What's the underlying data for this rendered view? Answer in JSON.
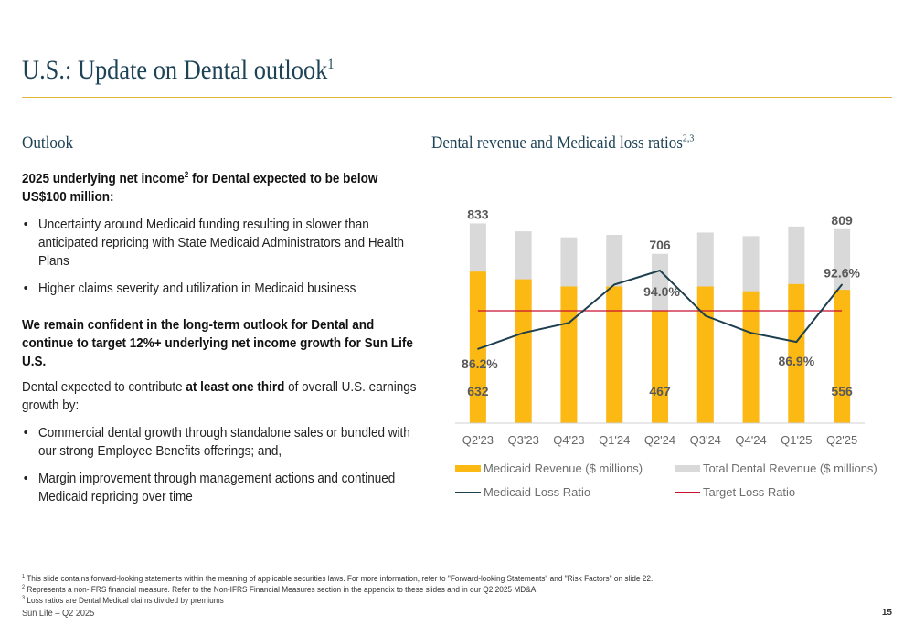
{
  "page": {
    "title": "U.S.: Update on Dental outlook",
    "title_sup": "1"
  },
  "outlook": {
    "heading": "Outlook",
    "headline_a": "2025 underlying net income",
    "headline_sup": "2",
    "headline_b": " for Dental expected to be below US$100 million:",
    "bullets1": [
      "Uncertainty around Medicaid funding resulting in slower than anticipated repricing with State Medicaid Administrators and Health Plans",
      "Higher claims severity and utilization in Medicaid business"
    ],
    "confident": "We remain confident in the long-term outlook for Dental and continue to target 12%+ underlying net income growth for Sun Life U.S.",
    "contrib_a": "Dental expected to contribute ",
    "contrib_bold": "at least one third",
    "contrib_b": " of overall U.S. earnings growth by:",
    "bullets2": [
      "Commercial dental growth through standalone sales or bundled with our strong Employee Benefits offerings; and,",
      "Margin improvement through management actions and continued Medicaid repricing over time"
    ]
  },
  "chart_heading": {
    "text": "Dental revenue and Medicaid loss ratios",
    "sup": "2,3"
  },
  "chart_data": {
    "type": "bar",
    "categories": [
      "Q2'23",
      "Q3'23",
      "Q4'23",
      "Q1'24",
      "Q2'24",
      "Q3'24",
      "Q4'24",
      "Q1'25",
      "Q2'25"
    ],
    "series": [
      {
        "name": "Medicaid Revenue ($ millions)",
        "type": "bar",
        "color": "#fdb913",
        "values": [
          632,
          600,
          570,
          570,
          467,
          570,
          550,
          580,
          556
        ]
      },
      {
        "name": "Total Dental Revenue ($ millions)",
        "type": "bar",
        "color": "#d9d9d9",
        "values": [
          833,
          800,
          775,
          785,
          706,
          795,
          780,
          820,
          809
        ]
      },
      {
        "name": "Medicaid Loss Ratio",
        "type": "line",
        "color": "#1e3f4e",
        "values": [
          86.2,
          87.8,
          88.8,
          92.6,
          94.0,
          89.5,
          87.8,
          86.9,
          92.6
        ]
      },
      {
        "name": "Target Loss Ratio",
        "type": "line",
        "color": "#c8102e",
        "values": [
          90.0,
          90.0,
          90.0,
          90.0,
          90.0,
          90.0,
          90.0,
          90.0,
          90.0
        ]
      }
    ],
    "data_labels": [
      {
        "category": "Q2'23",
        "series": "Total Dental Revenue ($ millions)",
        "text": "833"
      },
      {
        "category": "Q2'24",
        "series": "Total Dental Revenue ($ millions)",
        "text": "706"
      },
      {
        "category": "Q2'25",
        "series": "Total Dental Revenue ($ millions)",
        "text": "809"
      },
      {
        "category": "Q2'23",
        "series": "Medicaid Revenue ($ millions)",
        "text": "632"
      },
      {
        "category": "Q2'24",
        "series": "Medicaid Revenue ($ millions)",
        "text": "467"
      },
      {
        "category": "Q2'25",
        "series": "Medicaid Revenue ($ millions)",
        "text": "556"
      },
      {
        "category": "Q2'23",
        "series": "Medicaid Loss Ratio",
        "text": "86.2%"
      },
      {
        "category": "Q2'24",
        "series": "Medicaid Loss Ratio",
        "text": "94.0%"
      },
      {
        "category": "Q1'25",
        "series": "Medicaid Loss Ratio",
        "text": "86.9%"
      },
      {
        "category": "Q2'25",
        "series": "Medicaid Loss Ratio",
        "text": "92.6%"
      }
    ],
    "revenue_range": [
      0,
      850
    ],
    "ratio_range": [
      80,
      100
    ],
    "legend_position": "bottom",
    "grid": false
  },
  "footnotes": [
    {
      "sup": "1",
      "text": " This slide contains forward-looking statements within the meaning of applicable securities laws. For more information, refer to \"Forward-looking Statements\" and \"Risk Factors\" on slide 22."
    },
    {
      "sup": "2",
      "text": " Represents a non-IFRS financial measure. Refer to the Non-IFRS Financial Measures section in the appendix to these slides and in our Q2 2025 MD&A."
    },
    {
      "sup": "3",
      "text": " Loss ratios are Dental Medical claims divided by premiums"
    }
  ],
  "footer": {
    "left": "Sun Life – Q2 2025",
    "page_number": "15"
  }
}
